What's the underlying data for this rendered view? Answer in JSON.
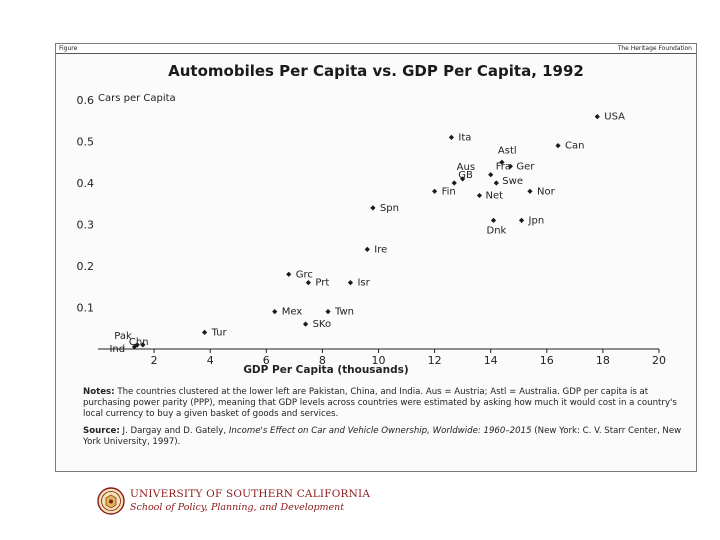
{
  "header": {
    "figure_tag": "Figure",
    "publisher": "The Heritage Foundation"
  },
  "chart_data": {
    "type": "scatter",
    "title": "Automobiles Per Capita vs. GDP Per Capita, 1992",
    "xlabel": "GDP Per Capita (thousands)",
    "ylabel": "Cars per Capita",
    "xlim": [
      0,
      20
    ],
    "ylim": [
      0,
      0.6
    ],
    "x_ticks": [
      2,
      4,
      6,
      8,
      10,
      12,
      14,
      16,
      18,
      20
    ],
    "y_ticks": [
      0.1,
      0.2,
      0.3,
      0.4,
      0.5,
      0.6
    ],
    "grid": false,
    "points": [
      {
        "label": "USA",
        "x": 17.8,
        "y": 0.56
      },
      {
        "label": "Ita",
        "x": 12.6,
        "y": 0.51
      },
      {
        "label": "Can",
        "x": 16.4,
        "y": 0.49
      },
      {
        "label": "Astl",
        "x": 14.4,
        "y": 0.45
      },
      {
        "label": "Ger",
        "x": 14.7,
        "y": 0.44
      },
      {
        "label": "Fra",
        "x": 14.0,
        "y": 0.42
      },
      {
        "label": "Aus",
        "x": 13.0,
        "y": 0.41
      },
      {
        "label": "Swe",
        "x": 14.2,
        "y": 0.4
      },
      {
        "label": "GB",
        "x": 12.7,
        "y": 0.4
      },
      {
        "label": "Fin",
        "x": 12.0,
        "y": 0.38
      },
      {
        "label": "Net",
        "x": 13.6,
        "y": 0.37
      },
      {
        "label": "Nor",
        "x": 15.4,
        "y": 0.38
      },
      {
        "label": "Spn",
        "x": 9.8,
        "y": 0.34
      },
      {
        "label": "Dnk",
        "x": 14.1,
        "y": 0.31
      },
      {
        "label": "Jpn",
        "x": 15.1,
        "y": 0.31
      },
      {
        "label": "Ire",
        "x": 9.6,
        "y": 0.24
      },
      {
        "label": "Grc",
        "x": 6.8,
        "y": 0.18
      },
      {
        "label": "Prt",
        "x": 7.5,
        "y": 0.16
      },
      {
        "label": "Isr",
        "x": 9.0,
        "y": 0.16
      },
      {
        "label": "Mex",
        "x": 6.3,
        "y": 0.09
      },
      {
        "label": "Twn",
        "x": 8.2,
        "y": 0.09
      },
      {
        "label": "SKo",
        "x": 7.4,
        "y": 0.06
      },
      {
        "label": "Tur",
        "x": 3.8,
        "y": 0.04
      },
      {
        "label": "Pak",
        "x": 1.4,
        "y": 0.01
      },
      {
        "label": "Chn",
        "x": 1.6,
        "y": 0.01
      },
      {
        "label": "Ind",
        "x": 1.3,
        "y": 0.005
      }
    ],
    "annotations": []
  },
  "notes": {
    "notes_label": "Notes:",
    "notes_text": "The countries clustered at the lower left are Pakistan, China, and India. Aus = Austria; Astl = Australia. GDP per capita is at purchasing power parity (PPP), meaning that GDP levels across countries were estimated by asking how much it would cost in a country's local currency to buy a given basket of goods and services.",
    "source_label": "Source:",
    "source_authors": "J. Dargay and D. Gately,",
    "source_title": "Income's Effect on Car and Vehicle Ownership, Worldwide: 1960–2015",
    "source_rest": "(New York: C. V. Starr Center, New York University, 1997)."
  },
  "footer": {
    "university": "UNIVERSITY OF SOUTHERN CALIFORNIA",
    "school": "School of Policy, Planning, and Development",
    "accent_color": "#8b1a1a"
  }
}
